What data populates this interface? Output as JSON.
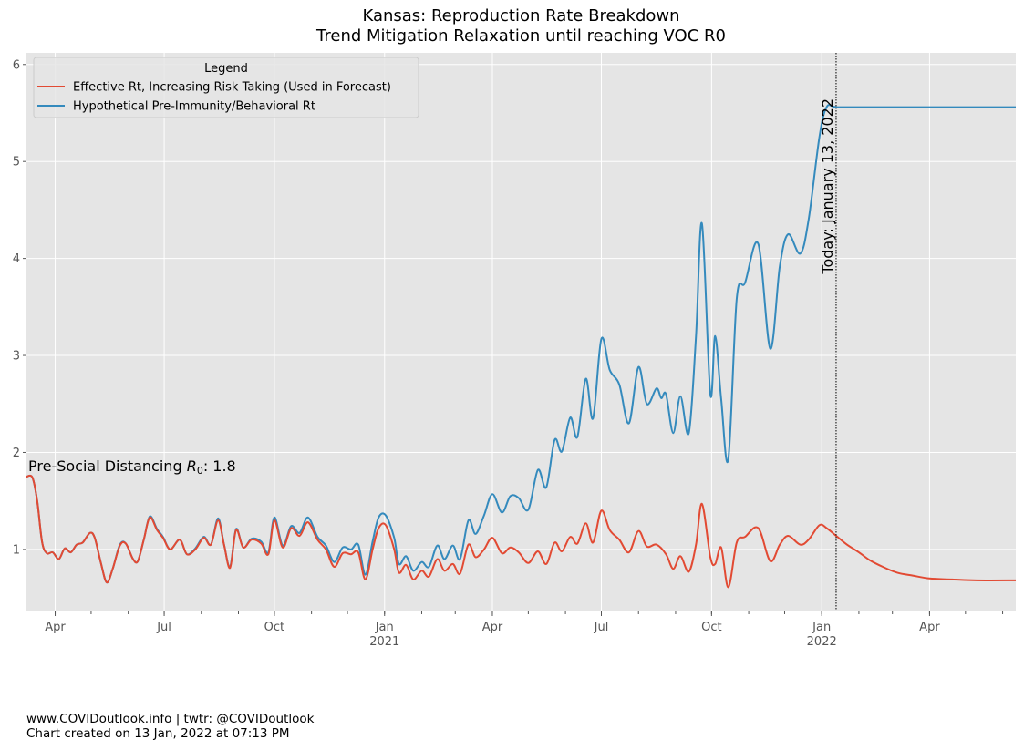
{
  "chart_data": {
    "type": "line",
    "title": "Kansas: Reproduction Rate Breakdown",
    "subtitle": "Trend Mitigation Relaxation until reaching VOC R0",
    "ylim": [
      0.36,
      6.12
    ],
    "y_ticks": [
      "1",
      "2",
      "3",
      "4",
      "5",
      "6"
    ],
    "x_range": [
      "2020-03-08",
      "2022-06-12"
    ],
    "x_ticks": [
      {
        "date": "2020-04-01",
        "label": "Apr",
        "sub": ""
      },
      {
        "date": "2020-07-01",
        "label": "Jul",
        "sub": ""
      },
      {
        "date": "2020-10-01",
        "label": "Oct",
        "sub": ""
      },
      {
        "date": "2021-01-01",
        "label": "Jan",
        "sub": "2021"
      },
      {
        "date": "2021-04-01",
        "label": "Apr",
        "sub": ""
      },
      {
        "date": "2021-07-01",
        "label": "Jul",
        "sub": ""
      },
      {
        "date": "2021-10-01",
        "label": "Oct",
        "sub": ""
      },
      {
        "date": "2022-01-01",
        "label": "Jan",
        "sub": "2022"
      },
      {
        "date": "2022-04-01",
        "label": "Apr",
        "sub": ""
      }
    ],
    "grid": true,
    "legend": {
      "title": "Legend",
      "placement": "upper left"
    },
    "today": {
      "date": "2022-01-13",
      "label": "Today: January 13, 2022"
    },
    "annotation": {
      "text_pre": "Pre-Social Distancing ",
      "symbol": "R",
      "subscript": "0",
      "text_post": ": 1.8",
      "date": "2020-03-08",
      "y": 1.8
    },
    "series": [
      {
        "name": "Effective Rt, Increasing Risk Taking (Used in Forecast)",
        "color": "#E24A33",
        "points": [
          [
            "2020-03-08",
            1.75
          ],
          [
            "2020-03-13",
            1.74
          ],
          [
            "2020-03-17",
            1.5
          ],
          [
            "2020-03-21",
            1.08
          ],
          [
            "2020-03-25",
            0.96
          ],
          [
            "2020-03-30",
            0.97
          ],
          [
            "2020-04-04",
            0.9
          ],
          [
            "2020-04-09",
            1.01
          ],
          [
            "2020-04-14",
            0.97
          ],
          [
            "2020-04-19",
            1.05
          ],
          [
            "2020-04-24",
            1.07
          ],
          [
            "2020-04-30",
            1.17
          ],
          [
            "2020-05-04",
            1.12
          ],
          [
            "2020-05-09",
            0.87
          ],
          [
            "2020-05-14",
            0.66
          ],
          [
            "2020-05-19",
            0.8
          ],
          [
            "2020-05-25",
            1.04
          ],
          [
            "2020-05-30",
            1.06
          ],
          [
            "2020-06-05",
            0.9
          ],
          [
            "2020-06-09",
            0.88
          ],
          [
            "2020-06-14",
            1.1
          ],
          [
            "2020-06-19",
            1.33
          ],
          [
            "2020-06-25",
            1.2
          ],
          [
            "2020-06-30",
            1.12
          ],
          [
            "2020-07-06",
            1.0
          ],
          [
            "2020-07-14",
            1.1
          ],
          [
            "2020-07-20",
            0.95
          ],
          [
            "2020-07-27",
            1.0
          ],
          [
            "2020-08-03",
            1.12
          ],
          [
            "2020-08-09",
            1.05
          ],
          [
            "2020-08-15",
            1.3
          ],
          [
            "2020-08-20",
            1.05
          ],
          [
            "2020-08-25",
            0.81
          ],
          [
            "2020-08-30",
            1.2
          ],
          [
            "2020-09-05",
            1.02
          ],
          [
            "2020-09-12",
            1.1
          ],
          [
            "2020-09-20",
            1.06
          ],
          [
            "2020-09-26",
            0.95
          ],
          [
            "2020-10-01",
            1.3
          ],
          [
            "2020-10-08",
            1.02
          ],
          [
            "2020-10-15",
            1.22
          ],
          [
            "2020-10-22",
            1.14
          ],
          [
            "2020-10-29",
            1.28
          ],
          [
            "2020-11-06",
            1.1
          ],
          [
            "2020-11-13",
            1.0
          ],
          [
            "2020-11-20",
            0.82
          ],
          [
            "2020-11-27",
            0.96
          ],
          [
            "2020-12-04",
            0.95
          ],
          [
            "2020-12-10",
            0.97
          ],
          [
            "2020-12-16",
            0.69
          ],
          [
            "2020-12-22",
            1.0
          ],
          [
            "2020-12-27",
            1.22
          ],
          [
            "2021-01-02",
            1.25
          ],
          [
            "2021-01-09",
            1.0
          ],
          [
            "2021-01-13",
            0.76
          ],
          [
            "2021-01-19",
            0.84
          ],
          [
            "2021-01-25",
            0.69
          ],
          [
            "2021-02-01",
            0.78
          ],
          [
            "2021-02-07",
            0.72
          ],
          [
            "2021-02-14",
            0.9
          ],
          [
            "2021-02-20",
            0.78
          ],
          [
            "2021-02-27",
            0.85
          ],
          [
            "2021-03-05",
            0.75
          ],
          [
            "2021-03-12",
            1.05
          ],
          [
            "2021-03-18",
            0.92
          ],
          [
            "2021-03-25",
            1.0
          ],
          [
            "2021-04-01",
            1.12
          ],
          [
            "2021-04-09",
            0.96
          ],
          [
            "2021-04-16",
            1.02
          ],
          [
            "2021-04-23",
            0.97
          ],
          [
            "2021-05-01",
            0.86
          ],
          [
            "2021-05-09",
            0.98
          ],
          [
            "2021-05-16",
            0.85
          ],
          [
            "2021-05-23",
            1.07
          ],
          [
            "2021-05-29",
            0.98
          ],
          [
            "2021-06-05",
            1.13
          ],
          [
            "2021-06-11",
            1.06
          ],
          [
            "2021-06-18",
            1.27
          ],
          [
            "2021-06-24",
            1.07
          ],
          [
            "2021-07-01",
            1.4
          ],
          [
            "2021-07-08",
            1.2
          ],
          [
            "2021-07-16",
            1.1
          ],
          [
            "2021-07-24",
            0.97
          ],
          [
            "2021-08-01",
            1.19
          ],
          [
            "2021-08-08",
            1.03
          ],
          [
            "2021-08-16",
            1.05
          ],
          [
            "2021-08-24",
            0.95
          ],
          [
            "2021-08-30",
            0.8
          ],
          [
            "2021-09-05",
            0.93
          ],
          [
            "2021-09-12",
            0.77
          ],
          [
            "2021-09-18",
            1.05
          ],
          [
            "2021-09-23",
            1.47
          ],
          [
            "2021-09-30",
            0.92
          ],
          [
            "2021-10-04",
            0.85
          ],
          [
            "2021-10-09",
            1.02
          ],
          [
            "2021-10-15",
            0.61
          ],
          [
            "2021-10-22",
            1.07
          ],
          [
            "2021-10-29",
            1.13
          ],
          [
            "2021-11-09",
            1.22
          ],
          [
            "2021-11-19",
            0.88
          ],
          [
            "2021-11-27",
            1.05
          ],
          [
            "2021-12-04",
            1.14
          ],
          [
            "2021-12-14",
            1.05
          ],
          [
            "2021-12-21",
            1.1
          ],
          [
            "2021-12-30",
            1.25
          ],
          [
            "2022-01-05",
            1.22
          ],
          [
            "2022-01-13",
            1.14
          ],
          [
            "2022-01-22",
            1.05
          ],
          [
            "2022-02-01",
            0.97
          ],
          [
            "2022-02-10",
            0.89
          ],
          [
            "2022-02-21",
            0.82
          ],
          [
            "2022-03-05",
            0.76
          ],
          [
            "2022-03-18",
            0.73
          ],
          [
            "2022-04-01",
            0.7
          ],
          [
            "2022-04-20",
            0.69
          ],
          [
            "2022-05-10",
            0.68
          ],
          [
            "2022-06-12",
            0.68
          ]
        ]
      },
      {
        "name": "Hypothetical Pre-Immunity/Behavioral Rt",
        "color": "#348ABD",
        "points": [
          [
            "2020-03-08",
            1.75
          ],
          [
            "2020-03-13",
            1.74
          ],
          [
            "2020-03-17",
            1.5
          ],
          [
            "2020-03-21",
            1.08
          ],
          [
            "2020-03-25",
            0.96
          ],
          [
            "2020-03-30",
            0.97
          ],
          [
            "2020-04-04",
            0.9
          ],
          [
            "2020-04-09",
            1.01
          ],
          [
            "2020-04-14",
            0.97
          ],
          [
            "2020-04-19",
            1.05
          ],
          [
            "2020-04-24",
            1.07
          ],
          [
            "2020-04-30",
            1.17
          ],
          [
            "2020-05-04",
            1.12
          ],
          [
            "2020-05-09",
            0.87
          ],
          [
            "2020-05-14",
            0.66
          ],
          [
            "2020-05-19",
            0.8
          ],
          [
            "2020-05-25",
            1.05
          ],
          [
            "2020-05-30",
            1.06
          ],
          [
            "2020-06-05",
            0.9
          ],
          [
            "2020-06-09",
            0.88
          ],
          [
            "2020-06-14",
            1.1
          ],
          [
            "2020-06-19",
            1.34
          ],
          [
            "2020-06-25",
            1.21
          ],
          [
            "2020-06-30",
            1.13
          ],
          [
            "2020-07-06",
            1.0
          ],
          [
            "2020-07-14",
            1.1
          ],
          [
            "2020-07-20",
            0.95
          ],
          [
            "2020-07-27",
            1.01
          ],
          [
            "2020-08-03",
            1.13
          ],
          [
            "2020-08-09",
            1.05
          ],
          [
            "2020-08-15",
            1.32
          ],
          [
            "2020-08-20",
            1.05
          ],
          [
            "2020-08-25",
            0.82
          ],
          [
            "2020-08-30",
            1.21
          ],
          [
            "2020-09-05",
            1.02
          ],
          [
            "2020-09-12",
            1.11
          ],
          [
            "2020-09-20",
            1.08
          ],
          [
            "2020-09-26",
            0.97
          ],
          [
            "2020-10-01",
            1.33
          ],
          [
            "2020-10-08",
            1.04
          ],
          [
            "2020-10-15",
            1.24
          ],
          [
            "2020-10-22",
            1.17
          ],
          [
            "2020-10-29",
            1.33
          ],
          [
            "2020-11-06",
            1.13
          ],
          [
            "2020-11-13",
            1.04
          ],
          [
            "2020-11-20",
            0.87
          ],
          [
            "2020-11-27",
            1.02
          ],
          [
            "2020-12-04",
            1.0
          ],
          [
            "2020-12-10",
            1.05
          ],
          [
            "2020-12-16",
            0.74
          ],
          [
            "2020-12-22",
            1.08
          ],
          [
            "2020-12-27",
            1.33
          ],
          [
            "2021-01-02",
            1.35
          ],
          [
            "2021-01-09",
            1.12
          ],
          [
            "2021-01-13",
            0.85
          ],
          [
            "2021-01-19",
            0.93
          ],
          [
            "2021-01-25",
            0.78
          ],
          [
            "2021-02-01",
            0.87
          ],
          [
            "2021-02-07",
            0.82
          ],
          [
            "2021-02-14",
            1.04
          ],
          [
            "2021-02-20",
            0.9
          ],
          [
            "2021-02-27",
            1.04
          ],
          [
            "2021-03-05",
            0.9
          ],
          [
            "2021-03-12",
            1.3
          ],
          [
            "2021-03-18",
            1.16
          ],
          [
            "2021-03-25",
            1.35
          ],
          [
            "2021-04-01",
            1.57
          ],
          [
            "2021-04-09",
            1.38
          ],
          [
            "2021-04-16",
            1.55
          ],
          [
            "2021-04-23",
            1.53
          ],
          [
            "2021-05-01",
            1.41
          ],
          [
            "2021-05-09",
            1.82
          ],
          [
            "2021-05-16",
            1.64
          ],
          [
            "2021-05-23",
            2.13
          ],
          [
            "2021-05-29",
            2.01
          ],
          [
            "2021-06-05",
            2.36
          ],
          [
            "2021-06-11",
            2.16
          ],
          [
            "2021-06-18",
            2.76
          ],
          [
            "2021-06-24",
            2.35
          ],
          [
            "2021-07-01",
            3.17
          ],
          [
            "2021-07-08",
            2.85
          ],
          [
            "2021-07-16",
            2.7
          ],
          [
            "2021-07-24",
            2.3
          ],
          [
            "2021-08-01",
            2.88
          ],
          [
            "2021-08-08",
            2.5
          ],
          [
            "2021-08-16",
            2.66
          ],
          [
            "2021-08-20",
            2.56
          ],
          [
            "2021-08-24",
            2.6
          ],
          [
            "2021-08-30",
            2.2
          ],
          [
            "2021-09-05",
            2.58
          ],
          [
            "2021-09-12",
            2.2
          ],
          [
            "2021-09-18",
            3.2
          ],
          [
            "2021-09-23",
            4.36
          ],
          [
            "2021-09-30",
            2.6
          ],
          [
            "2021-10-04",
            3.2
          ],
          [
            "2021-10-09",
            2.55
          ],
          [
            "2021-10-15",
            1.93
          ],
          [
            "2021-10-22",
            3.58
          ],
          [
            "2021-10-29",
            3.75
          ],
          [
            "2021-11-09",
            4.15
          ],
          [
            "2021-11-19",
            3.07
          ],
          [
            "2021-11-27",
            3.92
          ],
          [
            "2021-12-04",
            4.25
          ],
          [
            "2021-12-14",
            4.05
          ],
          [
            "2021-12-21",
            4.4
          ],
          [
            "2021-12-30",
            5.25
          ],
          [
            "2022-01-05",
            5.56
          ],
          [
            "2022-01-13",
            5.56
          ],
          [
            "2022-02-01",
            5.56
          ],
          [
            "2022-06-12",
            5.56
          ]
        ]
      }
    ]
  },
  "footer": {
    "line1": "www.COVIDoutlook.info | twtr: @COVIDoutlook",
    "line2": "Chart created on 13 Jan, 2022 at 07:13 PM"
  }
}
